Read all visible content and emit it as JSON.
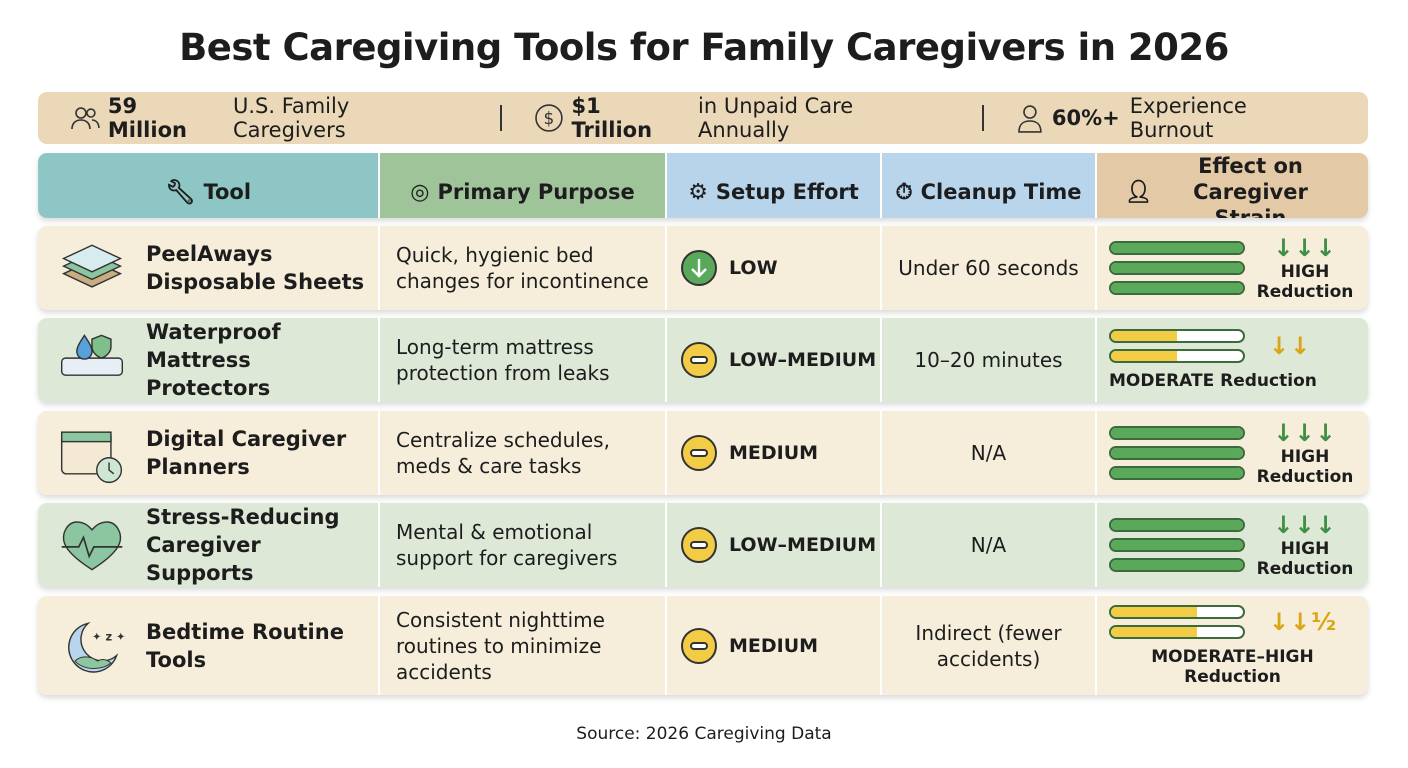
{
  "title": "Best Caregiving Tools for Family Caregivers in 2026",
  "stats": [
    {
      "bold": "59 Million",
      "text": "U.S. Family Caregivers"
    },
    {
      "bold": "$1 Trillion",
      "text": "in Unpaid Care Annually"
    },
    {
      "bold": "60%+",
      "text": "Experience Burnout"
    }
  ],
  "table": {
    "headers": [
      "Tool",
      "Primary Purpose",
      "Setup Effort",
      "Cleanup Time",
      "Effect on Caregiver Strain"
    ],
    "rows": [
      {
        "tool": "PeelAways Disposable Sheets",
        "purpose": "Quick, hygienic bed changes for incontinence",
        "setup": "LOW",
        "cleanup": "Under 60 seconds",
        "arrows": "↓↓↓",
        "strain": "HIGH Reduction"
      },
      {
        "tool": "Waterproof Mattress Protectors",
        "purpose": "Long-term mattress protection from leaks",
        "setup": "LOW–MEDIUM",
        "cleanup": "10–20 minutes",
        "arrows": "↓↓",
        "strain": "MODERATE Reduction"
      },
      {
        "tool": "Digital Caregiver Planners",
        "purpose": "Centralize schedules, meds & care tasks",
        "setup": "MEDIUM",
        "cleanup": "N/A",
        "arrows": "↓↓↓",
        "strain": "HIGH Reduction"
      },
      {
        "tool": "Stress-Reducing Caregiver Supports",
        "purpose": "Mental & emotional support for caregivers",
        "setup": "LOW–MEDIUM",
        "cleanup": "N/A",
        "arrows": "↓↓↓",
        "strain": "HIGH Reduction"
      },
      {
        "tool": "Bedtime Routine Tools",
        "purpose": "Consistent nighttime routines to minimize accidents",
        "setup": "MEDIUM",
        "cleanup": "Indirect (fewer accidents)",
        "arrows": "↓↓½",
        "strain": "MODERATE–HIGH Reduction"
      }
    ]
  },
  "source": "Source: 2026 Caregiving Data"
}
